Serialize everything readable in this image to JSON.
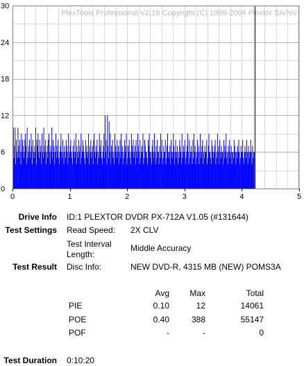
{
  "chart_data": {
    "type": "bar",
    "watermark": "PlexTools Professional V2.16 Copyright (C) 1999-2004 Plextor SA/NV",
    "xlim": [
      0,
      5
    ],
    "ylim": [
      0,
      30
    ],
    "x_ticks": [
      0,
      1,
      2,
      3,
      4,
      5
    ],
    "y_ticks": [
      0,
      6,
      12,
      18,
      24,
      30
    ],
    "grid": true,
    "bar_color": "#0000ff",
    "end_marker_x": 4.22,
    "series": [
      {
        "x_start": 0,
        "x_step": 0.01,
        "values": [
          6,
          10,
          5,
          7,
          10,
          4,
          8,
          6,
          5,
          10,
          7,
          5,
          8,
          6,
          4,
          9,
          6,
          8,
          7,
          5,
          6,
          8,
          9,
          7,
          4,
          10,
          5,
          6,
          7,
          8,
          5,
          6,
          9,
          7,
          4,
          8,
          6,
          5,
          7,
          6,
          10,
          4,
          8,
          7,
          9,
          6,
          5,
          8,
          6,
          7,
          4,
          9,
          6,
          5,
          10,
          7,
          6,
          8,
          4,
          6,
          7,
          5,
          8,
          9,
          6,
          4,
          7,
          6,
          10,
          5,
          8,
          6,
          7,
          4,
          6,
          9,
          5,
          7,
          6,
          8,
          5,
          4,
          6,
          7,
          9,
          6,
          5,
          8,
          6,
          4,
          7,
          6,
          5,
          8,
          7,
          6,
          4,
          9,
          5,
          6,
          7,
          8,
          6,
          5,
          4,
          7,
          6,
          8,
          5,
          6,
          9,
          4,
          7,
          6,
          5,
          8,
          6,
          7,
          4,
          9,
          5,
          6,
          8,
          7,
          6,
          5,
          4,
          8,
          6,
          7,
          5,
          6,
          9,
          4,
          7,
          6,
          8,
          5,
          6,
          7,
          4,
          8,
          9,
          6,
          5,
          7,
          6,
          8,
          4,
          6,
          5,
          9,
          7,
          6,
          8,
          5,
          4,
          6,
          7,
          9,
          5,
          12,
          6,
          8,
          4,
          12,
          7,
          5,
          11,
          6,
          9,
          4,
          7,
          6,
          8,
          5,
          6,
          4,
          9,
          7,
          6,
          5,
          8,
          6,
          7,
          4,
          6,
          8,
          5,
          9,
          6,
          7,
          4,
          6,
          5,
          8,
          7,
          6,
          9,
          4,
          5,
          7,
          6,
          8,
          5,
          6,
          4,
          9,
          7,
          6,
          8,
          5,
          6,
          7,
          4,
          8,
          6,
          5,
          9,
          7,
          6,
          4,
          8,
          5,
          6,
          7,
          6,
          9,
          4,
          5,
          8,
          7,
          6,
          6,
          5,
          4,
          8,
          7,
          9,
          6,
          5,
          6,
          4,
          7,
          8,
          6,
          5,
          9,
          6,
          4,
          7,
          5,
          8,
          6,
          6,
          4,
          7,
          5,
          9,
          6,
          8,
          4,
          5,
          7,
          6,
          6,
          8,
          4,
          5,
          7,
          9,
          6,
          5,
          6,
          7,
          4,
          8,
          6,
          5,
          6,
          9,
          7,
          4,
          6,
          8,
          5,
          6,
          7,
          4,
          6,
          5,
          8,
          7,
          6,
          4,
          9,
          5,
          6,
          7,
          6,
          8,
          4,
          5,
          6,
          7,
          9,
          6,
          4,
          8,
          5,
          6,
          7,
          6,
          4,
          8,
          5,
          9,
          6,
          7,
          4,
          6,
          5,
          8,
          6,
          7,
          4,
          6,
          9,
          5,
          6,
          7,
          8,
          4,
          6,
          5,
          7,
          6,
          6,
          8,
          4,
          5,
          7,
          9,
          6,
          6,
          5,
          4,
          8,
          7,
          6,
          5,
          6,
          7,
          8,
          4,
          6,
          5,
          9,
          6,
          7,
          4,
          8,
          6,
          5,
          7,
          6,
          6,
          4,
          8,
          5,
          7,
          6,
          9,
          5,
          6,
          4,
          7,
          6,
          8,
          5,
          6,
          7,
          4,
          6,
          6,
          5,
          8,
          7,
          6,
          4,
          6,
          5,
          7,
          6,
          8,
          6,
          4,
          5,
          7,
          6,
          6,
          8,
          5,
          4,
          6,
          7,
          6,
          5,
          8,
          6,
          4,
          7,
          6,
          5,
          6,
          8,
          6,
          4,
          7,
          5,
          6,
          6
        ]
      }
    ]
  },
  "drive_info": {
    "label": "Drive Info",
    "value": "ID:1 PLEXTOR DVDR PX-712A V1.05 (#131644)"
  },
  "test_settings": {
    "label": "Test Settings",
    "read_speed_label": "Read Speed:",
    "read_speed_value": "2X CLV",
    "interval_label_line1": "Test Interval",
    "interval_label_line2": "Length:",
    "interval_value": "Middle Accuracy"
  },
  "test_result": {
    "label": "Test Result",
    "disc_info_label": "Disc Info:",
    "disc_info_value": "NEW DVD-R, 4315 MB (NEW) POMS3A",
    "headers": [
      "Avg",
      "Max",
      "Total"
    ],
    "rows": [
      {
        "name": "PIE",
        "avg": "0.10",
        "max": "12",
        "total": "14061"
      },
      {
        "name": "POE",
        "avg": "0.40",
        "max": "388",
        "total": "55147"
      },
      {
        "name": "POF",
        "avg": "-",
        "max": "-",
        "total": "0"
      }
    ]
  },
  "test_duration": {
    "label": "Test Duration",
    "value": "0:10:20"
  }
}
